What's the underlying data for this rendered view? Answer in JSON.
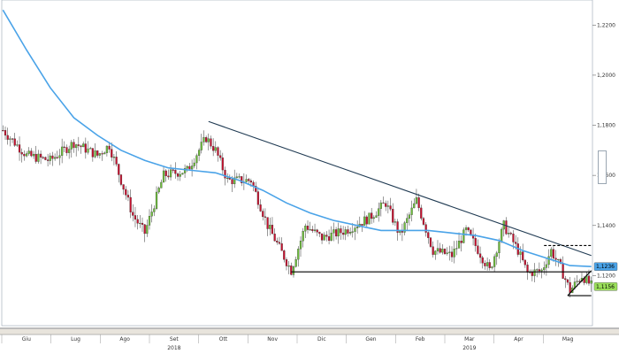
{
  "toolbar": {
    "buttons": [
      "+",
      "↗",
      "⇅",
      "⚲"
    ]
  },
  "chart_data": {
    "type": "candlestick",
    "title": "",
    "xlabel": "",
    "ylabel": "",
    "ylim": [
      1.1,
      1.23
    ],
    "y_ticks": [
      "1,2200",
      "1,2000",
      "1,1800",
      "1,1600",
      "1,1400",
      "1,1200"
    ],
    "y_tick_values": [
      1.22,
      1.2,
      1.18,
      1.16,
      1.14,
      1.12
    ],
    "months": [
      "Giu",
      "Lug",
      "Ago",
      "Set",
      "Ott",
      "Nov",
      "Dic",
      "Gen",
      "Feb",
      "Mar",
      "Apr",
      "Mag"
    ],
    "years": [
      "2018",
      "2019"
    ],
    "candle_count": 250,
    "price_path": [
      {
        "i": 0,
        "v": 1.178
      },
      {
        "i": 10,
        "v": 1.168
      },
      {
        "i": 20,
        "v": 1.166
      },
      {
        "i": 30,
        "v": 1.173
      },
      {
        "i": 40,
        "v": 1.168
      },
      {
        "i": 45,
        "v": 1.172
      },
      {
        "i": 55,
        "v": 1.144
      },
      {
        "i": 60,
        "v": 1.137
      },
      {
        "i": 68,
        "v": 1.16
      },
      {
        "i": 78,
        "v": 1.162
      },
      {
        "i": 86,
        "v": 1.175
      },
      {
        "i": 90,
        "v": 1.17
      },
      {
        "i": 95,
        "v": 1.158
      },
      {
        "i": 105,
        "v": 1.158
      },
      {
        "i": 112,
        "v": 1.14
      },
      {
        "i": 122,
        "v": 1.122
      },
      {
        "i": 128,
        "v": 1.14
      },
      {
        "i": 135,
        "v": 1.135
      },
      {
        "i": 145,
        "v": 1.138
      },
      {
        "i": 155,
        "v": 1.143
      },
      {
        "i": 162,
        "v": 1.149
      },
      {
        "i": 168,
        "v": 1.136
      },
      {
        "i": 175,
        "v": 1.15
      },
      {
        "i": 182,
        "v": 1.13
      },
      {
        "i": 190,
        "v": 1.128
      },
      {
        "i": 196,
        "v": 1.138
      },
      {
        "i": 200,
        "v": 1.132
      },
      {
        "i": 206,
        "v": 1.122
      },
      {
        "i": 212,
        "v": 1.14
      },
      {
        "i": 218,
        "v": 1.13
      },
      {
        "i": 222,
        "v": 1.121
      },
      {
        "i": 228,
        "v": 1.122
      },
      {
        "i": 232,
        "v": 1.13
      },
      {
        "i": 236,
        "v": 1.123
      },
      {
        "i": 240,
        "v": 1.114
      },
      {
        "i": 245,
        "v": 1.12
      },
      {
        "i": 249,
        "v": 1.116
      }
    ],
    "moving_average": [
      {
        "i": 0,
        "v": 1.226
      },
      {
        "i": 10,
        "v": 1.21
      },
      {
        "i": 20,
        "v": 1.195
      },
      {
        "i": 30,
        "v": 1.183
      },
      {
        "i": 40,
        "v": 1.176
      },
      {
        "i": 50,
        "v": 1.17
      },
      {
        "i": 60,
        "v": 1.166
      },
      {
        "i": 70,
        "v": 1.163
      },
      {
        "i": 80,
        "v": 1.162
      },
      {
        "i": 90,
        "v": 1.161
      },
      {
        "i": 100,
        "v": 1.158
      },
      {
        "i": 110,
        "v": 1.154
      },
      {
        "i": 120,
        "v": 1.149
      },
      {
        "i": 130,
        "v": 1.145
      },
      {
        "i": 140,
        "v": 1.142
      },
      {
        "i": 150,
        "v": 1.14
      },
      {
        "i": 160,
        "v": 1.138
      },
      {
        "i": 170,
        "v": 1.138
      },
      {
        "i": 180,
        "v": 1.138
      },
      {
        "i": 190,
        "v": 1.137
      },
      {
        "i": 200,
        "v": 1.136
      },
      {
        "i": 210,
        "v": 1.134
      },
      {
        "i": 220,
        "v": 1.13
      },
      {
        "i": 230,
        "v": 1.127
      },
      {
        "i": 240,
        "v": 1.124
      },
      {
        "i": 249,
        "v": 1.1236
      }
    ],
    "trendlines": [
      {
        "name": "resistance",
        "style": "solid",
        "color": "#1f3a52",
        "from": {
          "i": 87,
          "v": 1.1815
        },
        "to": {
          "i": 249,
          "v": 1.128
        }
      },
      {
        "name": "support",
        "style": "solid",
        "color": "#000000",
        "from": {
          "i": 122,
          "v": 1.1215
        },
        "to": {
          "i": 249,
          "v": 1.1215
        }
      },
      {
        "name": "range-top",
        "style": "dashed",
        "color": "#000000",
        "from": {
          "i": 229,
          "v": 1.132
        },
        "to": {
          "i": 249,
          "v": 1.132
        }
      },
      {
        "name": "channel-base",
        "style": "solid",
        "color": "#000000",
        "from": {
          "i": 239,
          "v": 1.112
        },
        "to": {
          "i": 249,
          "v": 1.112
        }
      },
      {
        "name": "channel-rise",
        "style": "solid",
        "color": "#000000",
        "from": {
          "i": 239,
          "v": 1.112
        },
        "to": {
          "i": 249,
          "v": 1.122
        }
      }
    ],
    "last_values": [
      {
        "name": "ma",
        "value": "1,1236",
        "color": "#4aa3e8"
      },
      {
        "name": "price",
        "value": "1,1156",
        "color": "#9be05a"
      }
    ],
    "colors": {
      "up": "#6dbf3a",
      "down": "#c8102e",
      "ma": "#4aa3e8",
      "grid": "#cfcfcf"
    },
    "grid": false
  }
}
